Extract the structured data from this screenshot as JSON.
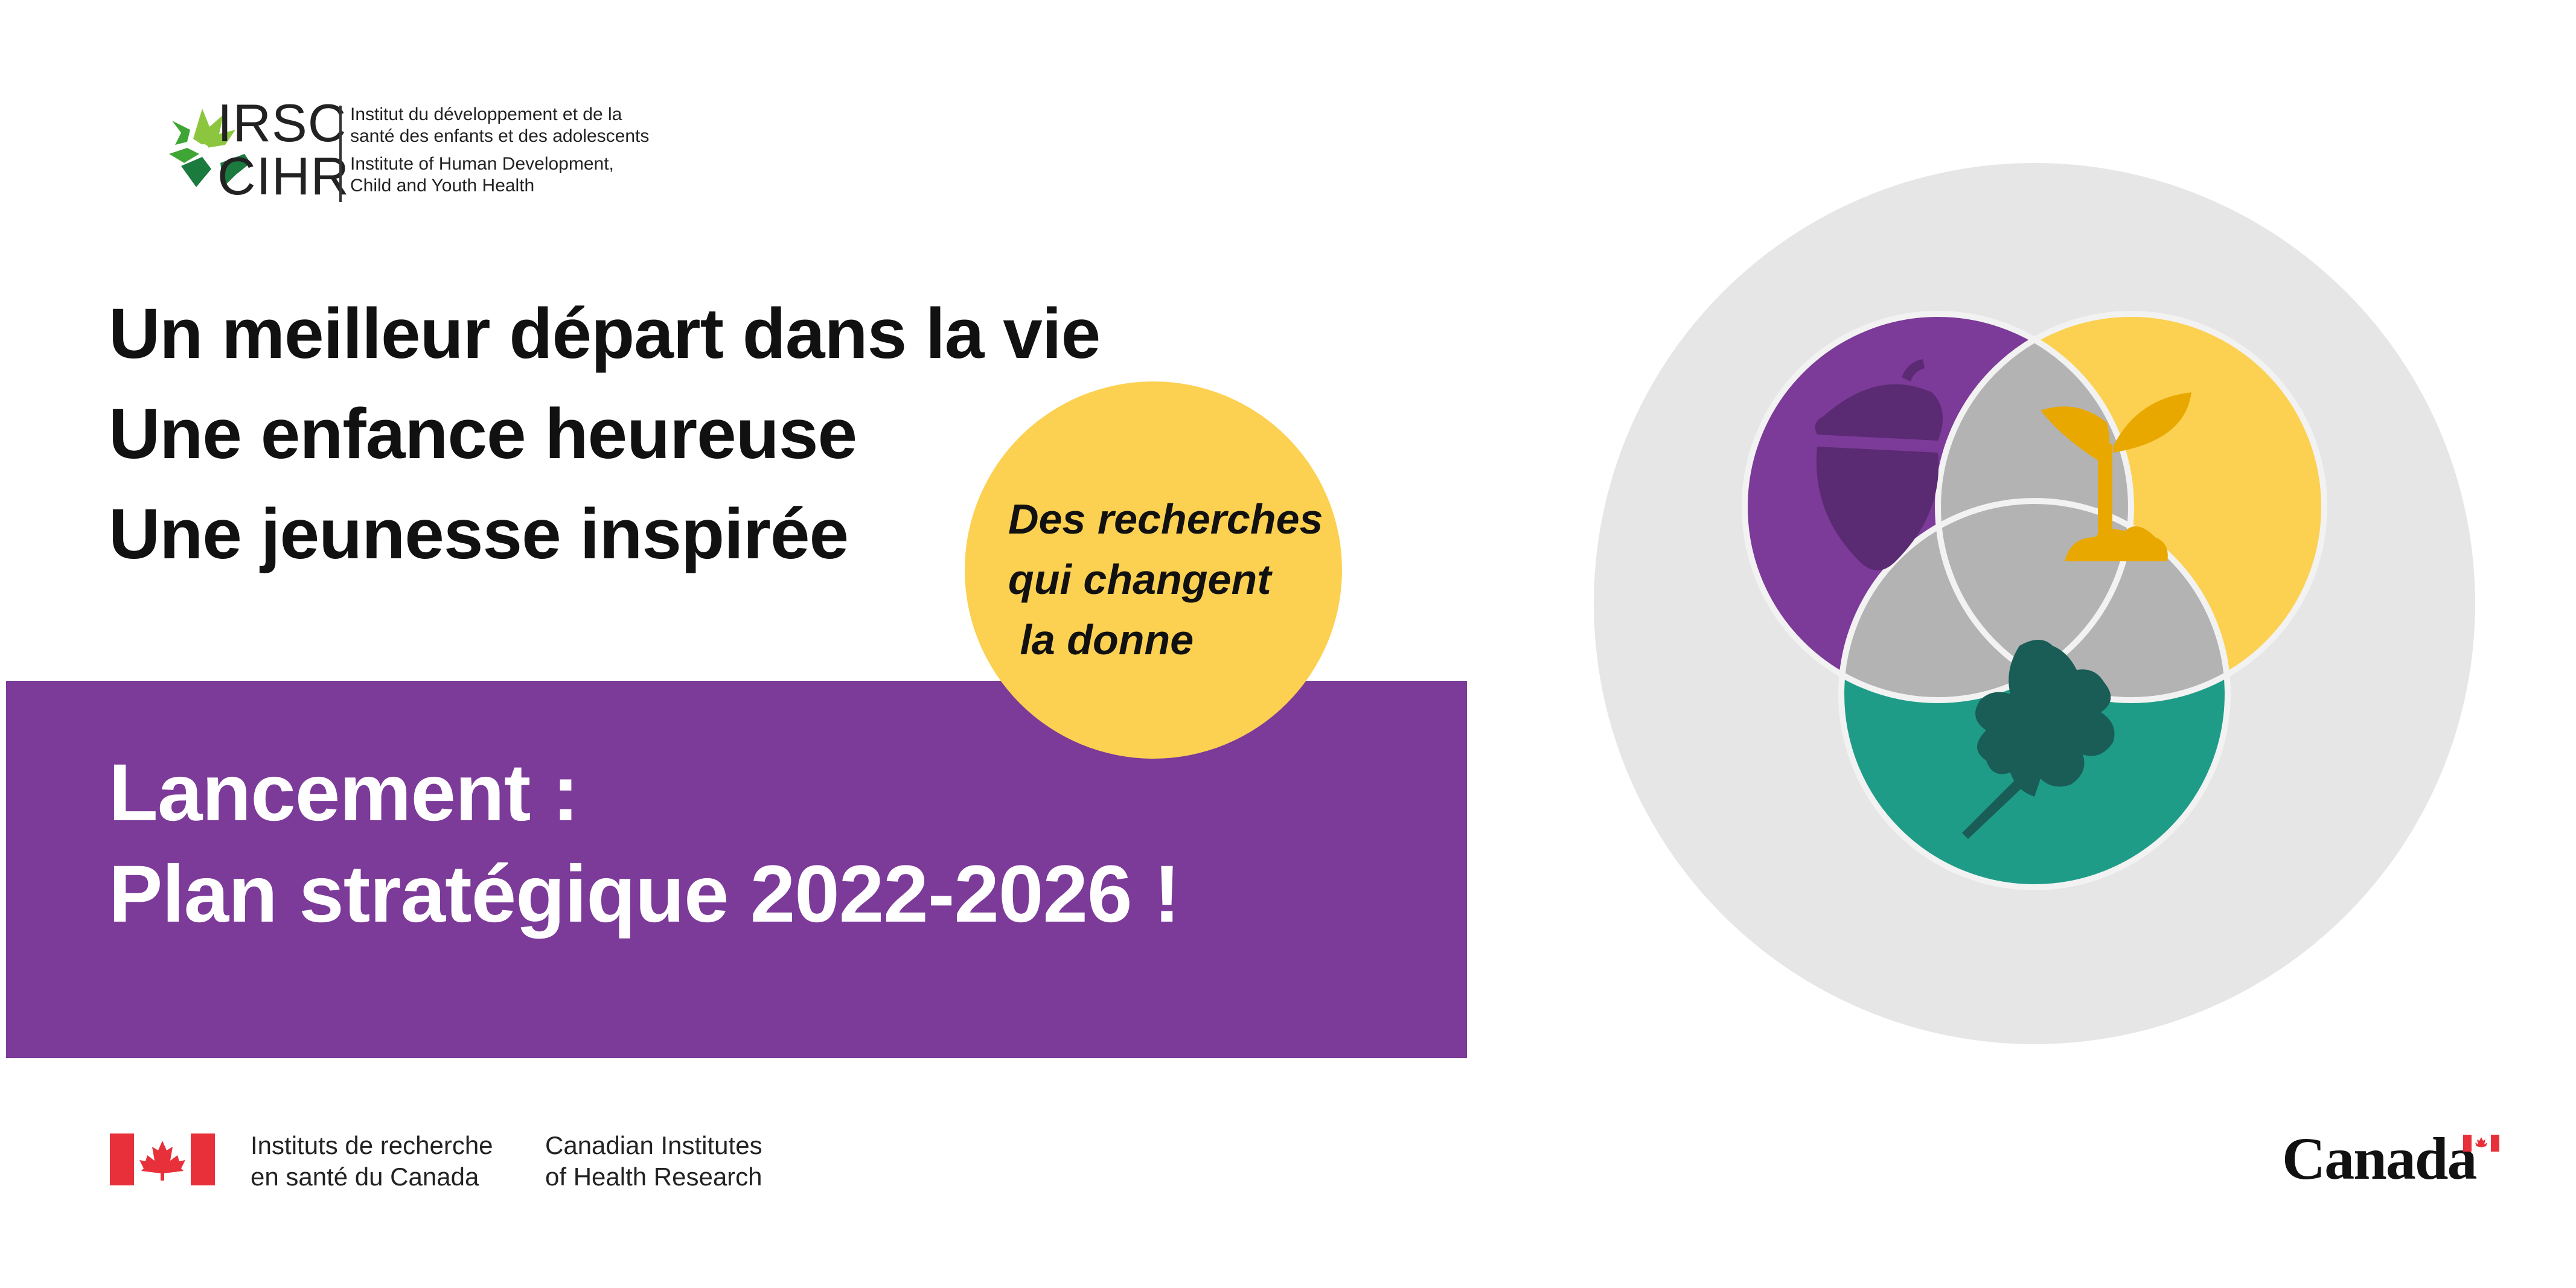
{
  "header": {
    "acronym_fr": "IRSC",
    "acronym_en": "CIHR",
    "institute_fr_line1": "Institut du développement et de la",
    "institute_fr_line2": "santé des enfants et des adolescents",
    "institute_en_line1": "Institute of Human Development,",
    "institute_en_line2": "Child and Youth Health"
  },
  "taglines": [
    "Un meilleur départ dans la vie",
    "Une enfance heureuse",
    "Une jeunesse inspirée"
  ],
  "bubble": {
    "line1": "Des recherches",
    "line2": "qui changent",
    "line3": " la donne"
  },
  "banner": {
    "line1": "Lancement :",
    "line2": "Plan stratégique 2022-2026 !"
  },
  "footer": {
    "fr_line1": "Instituts de recherche",
    "fr_line2": "en santé du Canada",
    "en_line1": "Canadian Institutes",
    "en_line2": "of Health Research",
    "wordmark": "Canada"
  },
  "colors": {
    "purple": "#7c3a99",
    "yellow": "#fcd151",
    "teal": "#1f9c88",
    "gray_bg": "#e6e6e6",
    "overlap_gray": "#b3b3b3",
    "canada_red": "#e8303b",
    "logo_green": "#3fa535",
    "logo_dark_green": "#1b7a3e"
  },
  "icons": {
    "venn_purple": "acorn-icon",
    "venn_yellow": "sprout-icon",
    "venn_teal": "oak-leaf-icon"
  }
}
